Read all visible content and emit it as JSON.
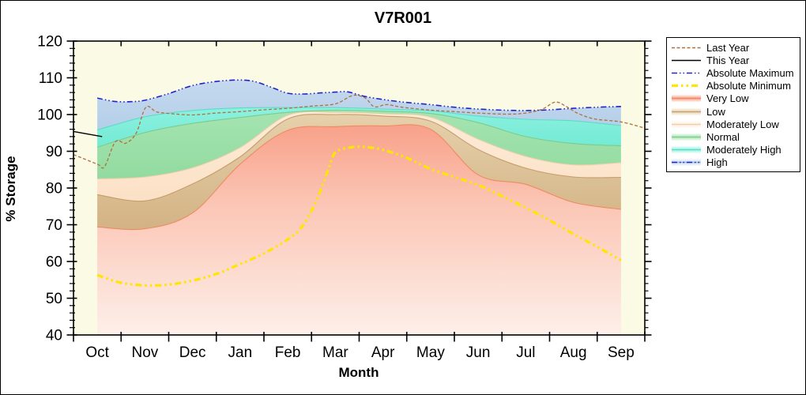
{
  "title": "V7R001",
  "y_axis": {
    "label": "% Storage",
    "min": 40,
    "max": 120,
    "major_step": 10,
    "minor_step": 2,
    "ticks": [
      40,
      50,
      60,
      70,
      80,
      90,
      100,
      110,
      120
    ]
  },
  "x_axis": {
    "label": "Month",
    "months": [
      "Oct",
      "Nov",
      "Dec",
      "Jan",
      "Feb",
      "Mar",
      "Apr",
      "May",
      "Jun",
      "Jul",
      "Aug",
      "Sep"
    ]
  },
  "colors": {
    "plot_bg": "#fafae5",
    "frame": "#000000",
    "last_year": "#b06f3e",
    "this_year": "#000000",
    "absolute_maximum": "#2222cc",
    "absolute_minimum": "#ffe600",
    "very_low": {
      "fill_top": "#f89c84",
      "fill_mid": "#fbc5b4",
      "fill_bottom": "#fdefe9",
      "edge": "#ee8a62"
    },
    "low": {
      "fill_top": "#e6d0ab",
      "fill_bottom": "#d2b283",
      "edge": "#c59e6b"
    },
    "moderately_low": {
      "fill_top": "#fdecd9",
      "fill_bottom": "#fbe0c4",
      "edge": "#eccfa6"
    },
    "normal": {
      "fill_top": "#a5e4b1",
      "fill_bottom": "#92dba0",
      "edge": "#7ecb8b"
    },
    "moderately_high": {
      "fill_top": "#8df1e0",
      "fill_bottom": "#72ead3",
      "edge": "#5cdcc6"
    },
    "high": {
      "fill_top": "#c5d9ee",
      "fill_bottom": "#b4cfe9",
      "edge": "#9bbcd8"
    }
  },
  "legend": {
    "items": [
      {
        "label": "Last Year",
        "swatch": "line-dashed",
        "color_key": "last_year"
      },
      {
        "label": "This Year",
        "swatch": "line-solid",
        "color_key": "this_year"
      },
      {
        "label": "Absolute Maximum",
        "swatch": "line-dashdot",
        "color_key": "absolute_maximum"
      },
      {
        "label": "Absolute Minimum",
        "swatch": "line-dashdot-thick",
        "color_key": "absolute_minimum"
      },
      {
        "label": "Very Low",
        "swatch": "band",
        "color_key": "very_low"
      },
      {
        "label": "Low",
        "swatch": "band",
        "color_key": "low"
      },
      {
        "label": "Moderately Low",
        "swatch": "band",
        "color_key": "moderately_low"
      },
      {
        "label": "Normal",
        "swatch": "band",
        "color_key": "normal"
      },
      {
        "label": "Moderately High",
        "swatch": "band",
        "color_key": "moderately_high"
      },
      {
        "label": "High",
        "swatch": "band-line",
        "color_key": "high",
        "line_color_key": "absolute_maximum"
      }
    ]
  },
  "chart_data": {
    "type": "area",
    "title": "V7R001",
    "xlabel": "Month",
    "ylabel": "% Storage",
    "ylim": [
      40,
      120
    ],
    "x_categories": [
      "Oct",
      "Nov",
      "Dec",
      "Jan",
      "Feb",
      "Mar",
      "Apr",
      "May",
      "Jun",
      "Jul",
      "Aug",
      "Sep"
    ],
    "band_boundaries_monthly": {
      "absolute_maximum": [
        104.5,
        103.9,
        107.9,
        109.4,
        105.8,
        106.1,
        104.1,
        102.7,
        101.5,
        101.1,
        101.7,
        102.2
      ],
      "high_bottom": [
        95.8,
        99.4,
        101.1,
        101.8,
        101.9,
        101.9,
        101.5,
        101.0,
        99.6,
        98.7,
        98.3,
        97.0
      ],
      "moderately_high_bottom": [
        91.1,
        95.1,
        97.6,
        99.2,
        100.6,
        101.2,
        100.9,
        100.3,
        97.8,
        94.0,
        92.1,
        91.5
      ],
      "normal_bottom": [
        82.5,
        83.0,
        85.5,
        91.0,
        99.8,
        100.6,
        100.2,
        99.3,
        93.3,
        88.6,
        86.3,
        86.9
      ],
      "moderately_low_bottom": [
        78.2,
        76.5,
        81.1,
        88.5,
        98.8,
        100.0,
        99.6,
        98.2,
        90.5,
        85.4,
        83.0,
        82.9
      ],
      "low_bottom": [
        69.4,
        68.9,
        73.2,
        86.5,
        95.7,
        96.7,
        96.9,
        96.0,
        83.6,
        81.0,
        76.1,
        74.2
      ],
      "very_low_bottom": 40
    },
    "lines": {
      "absolute_maximum": {
        "points": [
          [
            0,
            104.5
          ],
          [
            0.35,
            103.6
          ],
          [
            0.7,
            103.5
          ],
          [
            1,
            103.9
          ],
          [
            1.5,
            105.7
          ],
          [
            2,
            107.9
          ],
          [
            2.5,
            109.0
          ],
          [
            2.95,
            109.4
          ],
          [
            3.3,
            109.0
          ],
          [
            3.7,
            107.2
          ],
          [
            4,
            105.8
          ],
          [
            4.35,
            105.6
          ],
          [
            4.7,
            105.9
          ],
          [
            5,
            106.1
          ],
          [
            5.25,
            106.2
          ],
          [
            5.6,
            105.0
          ],
          [
            6,
            104.1
          ],
          [
            6.5,
            103.3
          ],
          [
            7,
            102.7
          ],
          [
            7.5,
            102.0
          ],
          [
            8,
            101.5
          ],
          [
            8.5,
            101.2
          ],
          [
            9,
            101.1
          ],
          [
            9.5,
            101.3
          ],
          [
            10,
            101.7
          ],
          [
            10.5,
            102.0
          ],
          [
            11,
            102.2
          ]
        ]
      },
      "absolute_minimum": {
        "points": [
          [
            0,
            56.3
          ],
          [
            0.5,
            54.2
          ],
          [
            1,
            53.5
          ],
          [
            1.5,
            53.7
          ],
          [
            2,
            54.8
          ],
          [
            2.5,
            56.6
          ],
          [
            3,
            59.3
          ],
          [
            3.5,
            62.2
          ],
          [
            4,
            66.0
          ],
          [
            4.3,
            69.5
          ],
          [
            4.6,
            76.5
          ],
          [
            4.85,
            85.0
          ],
          [
            5,
            89.7
          ],
          [
            5.3,
            91.0
          ],
          [
            5.6,
            91.2
          ],
          [
            6,
            90.4
          ],
          [
            6.5,
            88.2
          ],
          [
            7,
            85.2
          ],
          [
            7.5,
            83.0
          ],
          [
            8,
            80.8
          ],
          [
            8.5,
            77.8
          ],
          [
            9,
            74.6
          ],
          [
            9.5,
            71.2
          ],
          [
            10,
            67.5
          ],
          [
            10.5,
            64.0
          ],
          [
            11,
            60.3
          ]
        ]
      },
      "last_year": {
        "points": [
          [
            -0.5,
            89.1
          ],
          [
            0,
            86.5
          ],
          [
            0.15,
            85.8
          ],
          [
            0.38,
            92.6
          ],
          [
            0.6,
            92.2
          ],
          [
            0.82,
            95.0
          ],
          [
            1.02,
            102.0
          ],
          [
            1.25,
            100.7
          ],
          [
            1.6,
            100.2
          ],
          [
            2,
            99.9
          ],
          [
            2.5,
            100.4
          ],
          [
            3,
            100.8
          ],
          [
            3.5,
            101.3
          ],
          [
            4,
            101.7
          ],
          [
            4.5,
            102.3
          ],
          [
            5,
            102.9
          ],
          [
            5.32,
            105.0
          ],
          [
            5.48,
            105.2
          ],
          [
            5.65,
            104.3
          ],
          [
            5.82,
            102.1
          ],
          [
            6.08,
            102.7
          ],
          [
            6.4,
            102.0
          ],
          [
            7,
            101.2
          ],
          [
            7.5,
            100.8
          ],
          [
            8,
            100.4
          ],
          [
            8.6,
            100.1
          ],
          [
            9,
            100.4
          ],
          [
            9.35,
            101.5
          ],
          [
            9.62,
            103.4
          ],
          [
            9.85,
            102.2
          ],
          [
            10.1,
            100.3
          ],
          [
            10.45,
            98.8
          ],
          [
            11,
            98.0
          ],
          [
            11.5,
            96.3
          ]
        ]
      },
      "this_year": {
        "points": [
          [
            -0.5,
            95.4
          ],
          [
            0.1,
            94.0
          ]
        ]
      }
    }
  }
}
